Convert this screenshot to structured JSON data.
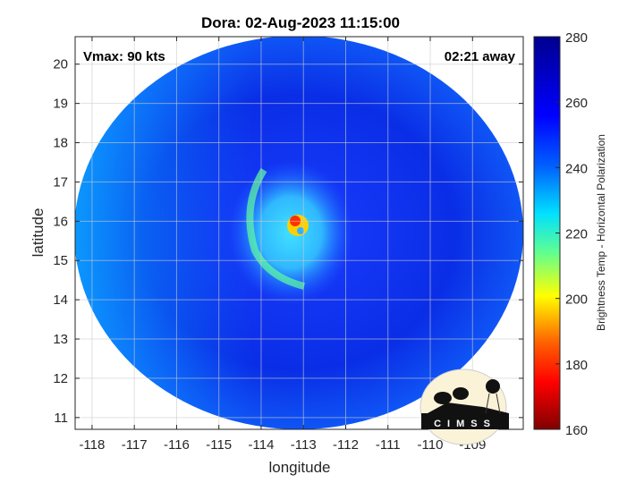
{
  "chart_data": {
    "type": "heatmap",
    "title": "Dora: 02-Aug-2023 11:15:00",
    "xlabel": "longitude",
    "ylabel": "latitude",
    "xlim": [
      -118.4,
      -107.8
    ],
    "ylim": [
      10.7,
      20.7
    ],
    "xticks": [
      -118,
      -117,
      -116,
      -115,
      -114,
      -113,
      -112,
      -111,
      -110,
      -109
    ],
    "xtick_labels": [
      "-118",
      "-117",
      "-116",
      "-115",
      "-114",
      "-113",
      "-112",
      "-111",
      "-110",
      "-109"
    ],
    "yticks": [
      11,
      12,
      13,
      14,
      15,
      16,
      17,
      18,
      19,
      20
    ],
    "ytick_labels": [
      "11",
      "12",
      "13",
      "14",
      "15",
      "16",
      "17",
      "18",
      "19",
      "20"
    ],
    "grid": true,
    "storm_center": {
      "lon": -113.3,
      "lat": 15.8
    },
    "colorbar": {
      "label": "Brightness Temp - Horizontal Polarization",
      "range": [
        160,
        280
      ],
      "ticks": [
        160,
        180,
        200,
        220,
        240,
        260,
        280
      ],
      "tick_labels": [
        "160",
        "180",
        "200",
        "220",
        "240",
        "260",
        "280"
      ],
      "colormap": "jet"
    },
    "annotations": {
      "vmax": "Vmax: 90 kts",
      "time_away": "02:21 away"
    },
    "logo": "CIMSS"
  }
}
